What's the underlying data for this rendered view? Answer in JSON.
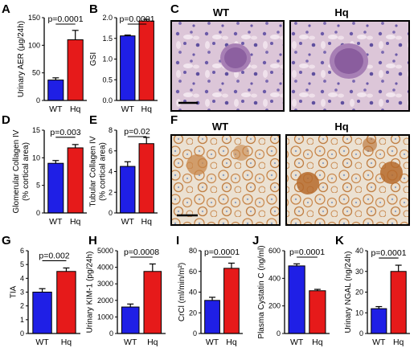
{
  "colors": {
    "wt": "#1f1fe6",
    "hq": "#e61a1a",
    "he_background": "#d9c2d6",
    "ihc_background": "#e8dccb"
  },
  "micrographs": [
    {
      "panel": "C",
      "left_label": "WT",
      "right_label": "Hq",
      "stain": "he"
    },
    {
      "panel": "F",
      "left_label": "WT",
      "right_label": "Hq",
      "stain": "ihc"
    }
  ],
  "chart_data": [
    {
      "panel": "A",
      "type": "bar",
      "categories": [
        "WT",
        "Hq"
      ],
      "values": [
        37,
        110
      ],
      "errors": [
        4,
        17
      ],
      "ylabel": "Urinary AER (µg/24h)",
      "ylim": [
        0,
        150
      ],
      "yticks": [
        "0",
        "50",
        "100",
        "150"
      ],
      "pvalue": "p=0.0001"
    },
    {
      "panel": "B",
      "type": "bar",
      "categories": [
        "WT",
        "Hq"
      ],
      "values": [
        1.56,
        1.92
      ],
      "errors": [
        0.02,
        0.04
      ],
      "ylabel": "GSI",
      "ylim": [
        0,
        2.0
      ],
      "yticks": [
        "0.0",
        "0.5",
        "1.0",
        "1.5",
        "2.0"
      ],
      "pvalue": "p=0.0001"
    },
    {
      "panel": "D",
      "type": "bar",
      "categories": [
        "WT",
        "Hq"
      ],
      "values": [
        9.0,
        11.8
      ],
      "errors": [
        0.5,
        0.6
      ],
      "ylabel": "Glomerular Collagen IV",
      "ylabel2": "(% cortical area)",
      "ylim": [
        0,
        15
      ],
      "yticks": [
        "0",
        "5",
        "10",
        "15"
      ],
      "pvalue": "p=0.003"
    },
    {
      "panel": "E",
      "type": "bar",
      "categories": [
        "WT",
        "Hq"
      ],
      "values": [
        4.5,
        6.7
      ],
      "errors": [
        0.45,
        0.6
      ],
      "ylabel": "Tubular Collagen IV",
      "ylabel2": "(% cortical area)",
      "ylim": [
        0,
        8
      ],
      "yticks": [
        "0",
        "2",
        "4",
        "6",
        "8"
      ],
      "pvalue": "p=0.02"
    },
    {
      "panel": "G",
      "type": "bar",
      "categories": [
        "WT",
        "Hq"
      ],
      "values": [
        3.0,
        4.5
      ],
      "errors": [
        0.25,
        0.25
      ],
      "ylabel": "TIA",
      "ylim": [
        0,
        6
      ],
      "yticks": [
        "0",
        "1",
        "2",
        "3",
        "4",
        "5",
        "6"
      ],
      "pvalue": "p=0.002"
    },
    {
      "panel": "H",
      "type": "bar",
      "categories": [
        "WT",
        "Hq"
      ],
      "values": [
        1600,
        3750
      ],
      "errors": [
        180,
        450
      ],
      "ylabel": "Urinary KIM-1 (pg/24h)",
      "ylim": [
        0,
        5000
      ],
      "yticks": [
        "0",
        "1000",
        "2000",
        "3000",
        "4000",
        "5000"
      ],
      "pvalue": "p=0.0008"
    },
    {
      "panel": "I",
      "type": "bar",
      "categories": [
        "WT",
        "Hq"
      ],
      "values": [
        32,
        63
      ],
      "errors": [
        3,
        5
      ],
      "ylabel": "CrCl (ml/min/m²)",
      "ylim": [
        0,
        80
      ],
      "yticks": [
        "0",
        "20",
        "40",
        "60",
        "80"
      ],
      "pvalue": "p=0.0001"
    },
    {
      "panel": "J",
      "type": "bar",
      "categories": [
        "WT",
        "Hq"
      ],
      "values": [
        490,
        310
      ],
      "errors": [
        15,
        10
      ],
      "ylabel": "Plasma Cystatin C (ng/ml)",
      "ylim": [
        0,
        600
      ],
      "yticks": [
        "0",
        "200",
        "400",
        "600"
      ],
      "pvalue": "p=0.0001"
    },
    {
      "panel": "K",
      "type": "bar",
      "categories": [
        "WT",
        "Hq"
      ],
      "values": [
        12,
        30
      ],
      "errors": [
        1,
        3
      ],
      "ylabel": "Urinary NGAL (ng/24h)",
      "ylim": [
        0,
        40
      ],
      "yticks": [
        "0",
        "10",
        "20",
        "30",
        "40"
      ],
      "pvalue": "p=0.0001"
    }
  ]
}
